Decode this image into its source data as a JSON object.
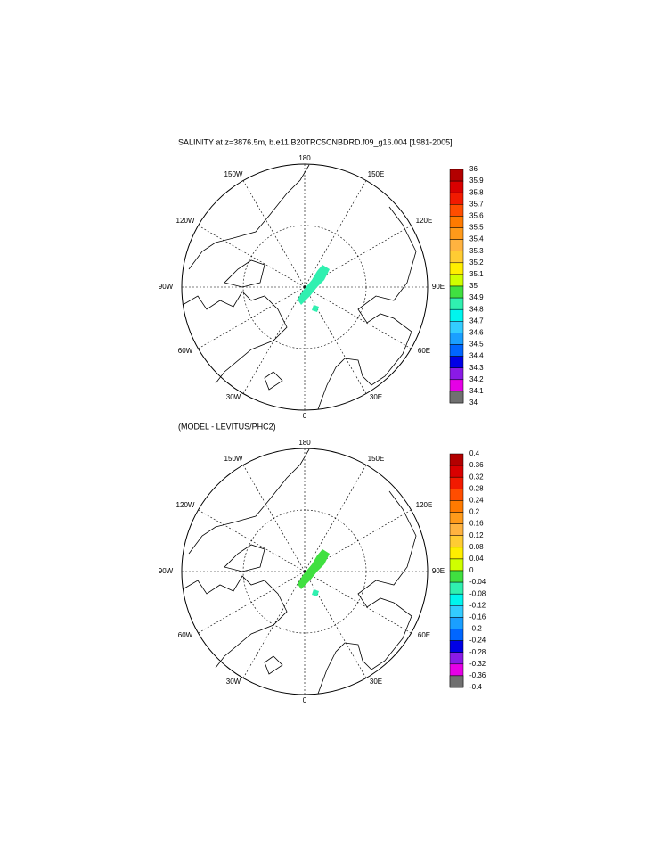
{
  "maps": [
    {
      "title": "SALINITY at z=3876.5m, b.e11.B20TRC5CNBDRD.f09_g16.004 [1981-2005]",
      "lon_labels": [
        "180",
        "150E",
        "120E",
        "90E",
        "60E",
        "30E",
        "0",
        "30W",
        "60W",
        "90W",
        "120W",
        "150W"
      ],
      "colorbar": {
        "labels": [
          "36",
          "35.9",
          "35.8",
          "35.7",
          "35.6",
          "35.5",
          "35.4",
          "35.3",
          "35.2",
          "35.1",
          "35",
          "34.9",
          "34.8",
          "34.7",
          "34.6",
          "34.5",
          "34.4",
          "34.3",
          "34.2",
          "34.1",
          "34"
        ],
        "colors": [
          "#b30000",
          "#d90000",
          "#f21a00",
          "#ff4d00",
          "#ff7a00",
          "#ff9a1a",
          "#ffb340",
          "#ffcc33",
          "#ffee00",
          "#cfff00",
          "#40e040",
          "#30f0b0",
          "#00f5ee",
          "#33ccff",
          "#1a9fff",
          "#0066ff",
          "#0000e6",
          "#8a1ae6",
          "#e600e6",
          "#d3d3d3",
          "#707070"
        ]
      }
    },
    {
      "title": "(MODEL - LEVITUS/PHC2)",
      "lon_labels": [
        "180",
        "150E",
        "120E",
        "90E",
        "60E",
        "30E",
        "0",
        "30W",
        "60W",
        "90W",
        "120W",
        "150W"
      ],
      "colorbar": {
        "labels": [
          "0.4",
          "0.36",
          "0.32",
          "0.28",
          "0.24",
          "0.2",
          "0.16",
          "0.12",
          "0.08",
          "0.04",
          "0",
          "-0.04",
          "-0.08",
          "-0.12",
          "-0.16",
          "-0.2",
          "-0.24",
          "-0.28",
          "-0.32",
          "-0.36",
          "-0.4"
        ],
        "colors": [
          "#b30000",
          "#d90000",
          "#f21a00",
          "#ff4d00",
          "#ff7a00",
          "#ff9a1a",
          "#ffb340",
          "#ffcc33",
          "#ffee00",
          "#cfff00",
          "#40e040",
          "#30f0b0",
          "#00f5ee",
          "#33ccff",
          "#1a9fff",
          "#0066ff",
          "#0000e6",
          "#8a1ae6",
          "#e600e6",
          "#d3d3d3",
          "#707070"
        ]
      }
    }
  ]
}
